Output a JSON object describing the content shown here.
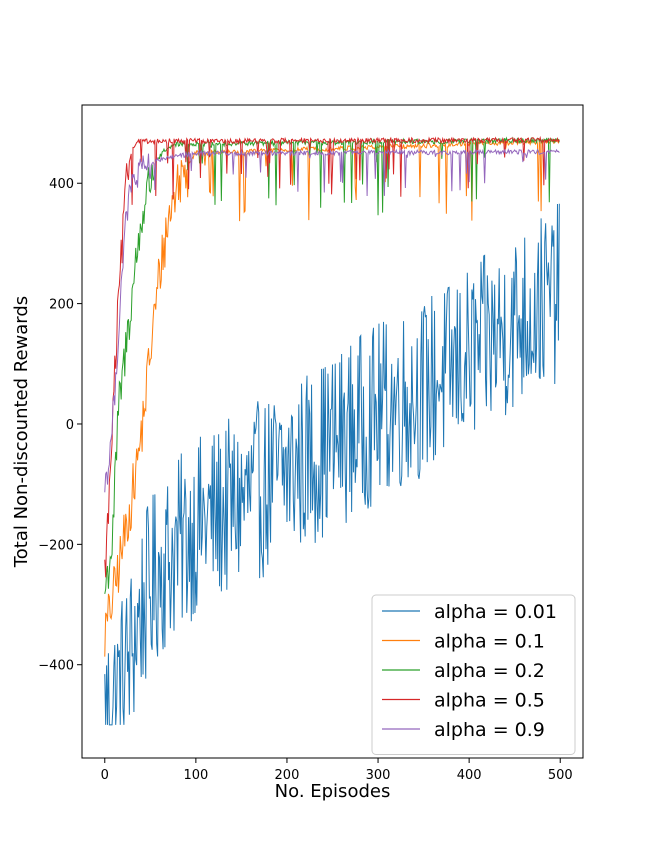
{
  "chart_data": {
    "type": "line",
    "title": "",
    "xlabel": "No. Episodes",
    "ylabel": "Total Non-discounted Rewards",
    "xlim": [
      -25,
      525
    ],
    "ylim": [
      -555,
      530
    ],
    "x_ticks": [
      0,
      100,
      200,
      300,
      400,
      500
    ],
    "y_ticks": [
      -400,
      -200,
      0,
      200,
      400
    ],
    "grid": false,
    "legend_position": "lower-right",
    "n_points": 500,
    "colors": [
      "#1f77b4",
      "#ff7f0e",
      "#2ca02c",
      "#d62728",
      "#9467bd"
    ],
    "series": [
      {
        "name": "alpha = 0.01",
        "color": "#1f77b4",
        "trend_x": [
          0,
          10,
          25,
          40,
          60,
          100,
          150,
          200,
          250,
          300,
          350,
          400,
          450,
          499
        ],
        "trend_y": [
          -480,
          -460,
          -400,
          -310,
          -240,
          -170,
          -130,
          -80,
          -30,
          20,
          60,
          110,
          170,
          220
        ],
        "noise_amplitude": 150,
        "max_value": 400,
        "min_value": -500
      },
      {
        "name": "alpha = 0.1",
        "color": "#ff7f0e",
        "trend_x": [
          0,
          10,
          20,
          30,
          40,
          50,
          60,
          70,
          80,
          90,
          100,
          499
        ],
        "trend_y": [
          -350,
          -280,
          -200,
          -120,
          -20,
          120,
          250,
          340,
          400,
          430,
          450,
          470
        ],
        "noise_amplitude": 45,
        "max_value": 473,
        "min_value": -410
      },
      {
        "name": "alpha = 0.2",
        "color": "#2ca02c",
        "trend_x": [
          0,
          8,
          15,
          25,
          35,
          45,
          55,
          65,
          80,
          499
        ],
        "trend_y": [
          -280,
          -200,
          20,
          150,
          280,
          380,
          430,
          455,
          465,
          472
        ],
        "noise_amplitude": 40,
        "max_value": 476,
        "min_value": -310
      },
      {
        "name": "alpha = 0.5",
        "color": "#d62728",
        "trend_x": [
          0,
          5,
          10,
          15,
          20,
          25,
          30,
          35,
          40,
          499
        ],
        "trend_y": [
          -250,
          -120,
          50,
          200,
          320,
          420,
          460,
          468,
          470,
          472
        ],
        "noise_amplitude": 35,
        "max_value": 476,
        "min_value": -290
      },
      {
        "name": "alpha = 0.9",
        "color": "#9467bd",
        "trend_x": [
          0,
          5,
          10,
          15,
          20,
          25,
          30,
          40,
          60,
          100,
          499
        ],
        "trend_y": [
          -100,
          -60,
          30,
          150,
          280,
          360,
          400,
          420,
          440,
          450,
          452
        ],
        "noise_amplitude": 25,
        "max_value": 470,
        "min_value": -280
      }
    ]
  }
}
